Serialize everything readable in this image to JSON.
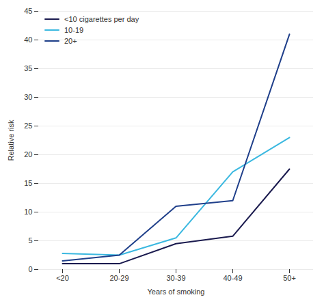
{
  "chart_data": {
    "type": "line",
    "categories": [
      "<20",
      "20-29",
      "30-39",
      "40-49",
      "50+"
    ],
    "series": [
      {
        "name": "<10 cigarettes per day",
        "color": "#1a1a4e",
        "values": [
          1.0,
          1.0,
          4.5,
          5.8,
          17.5
        ]
      },
      {
        "name": "10-19",
        "color": "#3ab8e0",
        "values": [
          2.8,
          2.5,
          5.5,
          17.0,
          23.0
        ]
      },
      {
        "name": "20+",
        "color": "#1f3f8a",
        "values": [
          1.5,
          2.5,
          11.0,
          12.0,
          41.0
        ]
      }
    ],
    "xlabel": "Years of smoking",
    "ylabel": "Relative risk",
    "ylim": [
      0,
      45
    ],
    "yticks": [
      0,
      5,
      10,
      15,
      20,
      25,
      30,
      35,
      40,
      45
    ],
    "grid": true,
    "legend": "upper left"
  }
}
